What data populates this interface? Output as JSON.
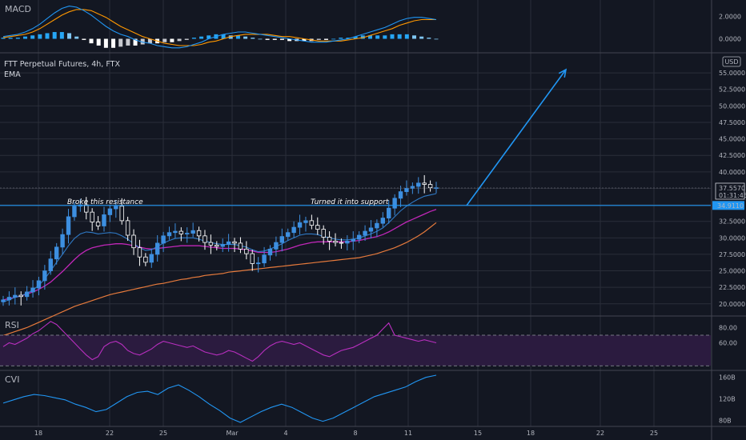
{
  "chart_data": {
    "type": "candlestick",
    "title": "FTT Perpetual Futures, 4h, FTX",
    "indicator_label": "EMA",
    "currency": "USD",
    "price_axis": {
      "ticks": [
        "55.0000",
        "52.5000",
        "50.0000",
        "47.5000",
        "45.0000",
        "42.5000",
        "40.0000",
        "37.5000",
        "35.0000",
        "32.5000",
        "30.0000",
        "27.5000",
        "25.0000",
        "22.5000",
        "20.0000"
      ],
      "values": [
        55,
        52.5,
        50,
        47.5,
        45,
        42.5,
        40,
        37.5,
        35,
        32.5,
        30,
        27.5,
        25,
        22.5,
        20
      ],
      "range": [
        18.4,
        57.8
      ]
    },
    "last_price": "37.5570",
    "countdown": "01:31:45",
    "resistance_level": "34.9110",
    "resistance_value": 34.911,
    "annotations": {
      "left": "Broke this resistance",
      "right": "Turned it into support"
    },
    "x_axis": {
      "labels": [
        "18",
        "22",
        "25",
        "Mar",
        "4",
        "8",
        "11",
        "15",
        "18",
        "22",
        "25"
      ],
      "domain": [
        0,
        932
      ]
    },
    "price_close": [
      20.6,
      21.0,
      21.3,
      21.1,
      21.8,
      22.4,
      23.5,
      25.0,
      26.8,
      28.6,
      30.5,
      33.2,
      34.8,
      35.0,
      33.9,
      32.4,
      31.8,
      33.5,
      34.4,
      34.8,
      32.6,
      30.4,
      28.5,
      27.1,
      26.3,
      27.5,
      29.2,
      30.3,
      30.8,
      31.0,
      30.6,
      30.7,
      31.1,
      30.3,
      29.3,
      28.9,
      28.7,
      29.0,
      29.4,
      29.2,
      28.3,
      27.6,
      26.1,
      26.2,
      27.4,
      28.3,
      29.3,
      30.2,
      30.8,
      31.6,
      32.3,
      32.6,
      31.9,
      31.3,
      30.1,
      29.5,
      29.3,
      29.2,
      29.5,
      29.8,
      30.4,
      31.0,
      31.5,
      32.2,
      33.0,
      34.5,
      36.0,
      37.0,
      37.5,
      37.8,
      38.3,
      38.1,
      37.6,
      37.6
    ],
    "ema_fast": [
      20.3,
      20.6,
      21.0,
      21.2,
      21.6,
      22.1,
      22.8,
      23.8,
      25.0,
      26.3,
      27.5,
      28.8,
      29.9,
      30.6,
      30.9,
      30.8,
      30.6,
      30.7,
      30.8,
      30.7,
      30.3,
      29.8,
      29.1,
      28.5,
      28.1,
      28.2,
      28.7,
      29.2,
      29.6,
      29.9,
      30.0,
      30.0,
      30.0,
      29.8,
      29.5,
      29.3,
      29.1,
      29.0,
      29.0,
      29.0,
      28.8,
      28.6,
      28.2,
      27.9,
      28.0,
      28.3,
      28.7,
      29.1,
      29.6,
      30.0,
      30.4,
      30.6,
      30.6,
      30.5,
      30.2,
      30.0,
      29.8,
      29.7,
      29.7,
      29.8,
      30.0,
      30.3,
      30.6,
      31.0,
      31.5,
      32.3,
      33.2,
      34.1,
      34.8,
      35.4,
      35.9,
      36.3,
      36.5,
      36.7
    ],
    "ema_mid": [
      20.6,
      20.8,
      21.0,
      21.2,
      21.5,
      21.8,
      22.2,
      22.7,
      23.3,
      24.1,
      24.9,
      25.8,
      26.7,
      27.5,
      28.1,
      28.5,
      28.7,
      28.9,
      29.0,
      29.1,
      29.1,
      29.0,
      28.8,
      28.6,
      28.4,
      28.3,
      28.4,
      28.5,
      28.6,
      28.7,
      28.8,
      28.8,
      28.8,
      28.8,
      28.7,
      28.6,
      28.5,
      28.4,
      28.4,
      28.4,
      28.3,
      28.2,
      28.0,
      27.8,
      27.8,
      27.8,
      27.9,
      28.1,
      28.3,
      28.6,
      28.9,
      29.1,
      29.3,
      29.4,
      29.4,
      29.4,
      29.4,
      29.4,
      29.4,
      29.5,
      29.6,
      29.8,
      30.0,
      30.2,
      30.5,
      30.9,
      31.4,
      31.9,
      32.4,
      32.8,
      33.2,
      33.6,
      34.0,
      34.3
    ],
    "ema_slow": [
      15.2,
      15.5,
      15.8,
      16.1,
      16.4,
      16.8,
      17.2,
      17.6,
      18.0,
      18.4,
      18.8,
      19.2,
      19.6,
      19.9,
      20.2,
      20.5,
      20.8,
      21.1,
      21.4,
      21.6,
      21.8,
      22.0,
      22.2,
      22.4,
      22.6,
      22.8,
      23.0,
      23.1,
      23.3,
      23.5,
      23.7,
      23.8,
      24.0,
      24.1,
      24.3,
      24.4,
      24.5,
      24.6,
      24.8,
      24.9,
      25.0,
      25.1,
      25.2,
      25.3,
      25.4,
      25.5,
      25.6,
      25.7,
      25.8,
      25.9,
      26.0,
      26.1,
      26.2,
      26.3,
      26.4,
      26.5,
      26.6,
      26.7,
      26.8,
      26.9,
      27.0,
      27.2,
      27.4,
      27.6,
      27.9,
      28.2,
      28.5,
      28.9,
      29.3,
      29.8,
      30.3,
      30.9,
      31.6,
      32.3
    ],
    "macd": {
      "label": "MACD",
      "ticks": [
        "2.0000",
        "0.0000"
      ],
      "tick_values": [
        2,
        0
      ],
      "range": [
        -1.1,
        3.3
      ],
      "macd_line": [
        0.2,
        0.3,
        0.4,
        0.6,
        0.9,
        1.3,
        1.8,
        2.3,
        2.7,
        2.9,
        2.8,
        2.5,
        2.1,
        1.6,
        1.1,
        0.7,
        0.4,
        0.2,
        -0.1,
        -0.3,
        -0.4,
        -0.6,
        -0.7,
        -0.8,
        -0.8,
        -0.7,
        -0.5,
        -0.3,
        0.0,
        0.2,
        0.4,
        0.5,
        0.6,
        0.6,
        0.5,
        0.4,
        0.3,
        0.2,
        0.1,
        0.0,
        -0.1,
        -0.2,
        -0.3,
        -0.3,
        -0.3,
        -0.2,
        -0.1,
        0.0,
        0.2,
        0.4,
        0.6,
        0.8,
        1.0,
        1.3,
        1.6,
        1.8,
        1.9,
        1.9,
        1.8,
        1.7
      ],
      "signal_line": [
        0.1,
        0.2,
        0.3,
        0.4,
        0.6,
        0.9,
        1.3,
        1.7,
        2.1,
        2.4,
        2.6,
        2.6,
        2.5,
        2.2,
        1.9,
        1.5,
        1.1,
        0.8,
        0.5,
        0.2,
        0.0,
        -0.2,
        -0.4,
        -0.5,
        -0.6,
        -0.6,
        -0.6,
        -0.5,
        -0.3,
        -0.2,
        0.0,
        0.2,
        0.3,
        0.4,
        0.4,
        0.4,
        0.4,
        0.3,
        0.2,
        0.2,
        0.1,
        0.0,
        -0.1,
        -0.2,
        -0.2,
        -0.2,
        -0.2,
        -0.1,
        0.0,
        0.1,
        0.3,
        0.5,
        0.7,
        0.9,
        1.2,
        1.4,
        1.6,
        1.7,
        1.7,
        1.7
      ],
      "histogram": [
        0.1,
        0.1,
        0.1,
        0.2,
        0.3,
        0.4,
        0.5,
        0.6,
        0.6,
        0.5,
        0.2,
        -0.1,
        -0.4,
        -0.6,
        -0.8,
        -0.8,
        -0.7,
        -0.6,
        -0.6,
        -0.5,
        -0.4,
        -0.4,
        -0.3,
        -0.3,
        -0.2,
        -0.1,
        0.1,
        0.2,
        0.3,
        0.4,
        0.4,
        0.3,
        0.3,
        0.2,
        0.1,
        0.0,
        -0.1,
        -0.1,
        -0.1,
        -0.2,
        -0.2,
        -0.2,
        -0.2,
        -0.1,
        -0.1,
        0.0,
        0.1,
        0.1,
        0.2,
        0.3,
        0.3,
        0.3,
        0.3,
        0.4,
        0.4,
        0.4,
        0.3,
        0.2,
        0.1,
        0.0
      ]
    },
    "rsi": {
      "label": "RSI",
      "ticks": [
        "80.00",
        "60.00"
      ],
      "tick_values": [
        80,
        60
      ],
      "range": [
        25,
        93
      ],
      "band": [
        30,
        70
      ],
      "values": [
        55,
        60,
        58,
        62,
        66,
        72,
        76,
        82,
        88,
        84,
        76,
        68,
        60,
        52,
        44,
        38,
        42,
        55,
        60,
        62,
        58,
        50,
        46,
        44,
        48,
        52,
        58,
        62,
        60,
        58,
        56,
        54,
        56,
        52,
        48,
        46,
        44,
        46,
        50,
        48,
        44,
        40,
        36,
        42,
        50,
        56,
        60,
        62,
        60,
        58,
        60,
        56,
        52,
        48,
        44,
        42,
        46,
        50,
        52,
        54,
        58,
        62,
        66,
        70,
        78,
        86,
        70,
        68,
        66,
        64,
        62,
        64,
        62,
        60
      ]
    },
    "cvi": {
      "label": "CVI",
      "ticks": [
        "160B",
        "120B",
        "80B"
      ],
      "tick_values": [
        160,
        120,
        80
      ],
      "range": [
        70,
        170
      ],
      "values": [
        112,
        118,
        124,
        128,
        126,
        122,
        118,
        110,
        104,
        96,
        100,
        112,
        124,
        132,
        134,
        128,
        140,
        146,
        136,
        124,
        110,
        98,
        84,
        76,
        86,
        96,
        104,
        110,
        104,
        94,
        84,
        78,
        84,
        94,
        104,
        114,
        124,
        130,
        136,
        142,
        152,
        160,
        164
      ]
    },
    "colors": {
      "background": "#131722",
      "grid": "#2a2e39",
      "up_candle": "#3d8fe0",
      "down_candle": "#ffffff",
      "ema_fast": "#2f7ac6",
      "ema_mid": "#c027b8",
      "ema_slow": "#e67a3c",
      "macd_line": "#2196f3",
      "signal_line": "#ff9800",
      "rsi_line": "#b82fbf",
      "rsi_band": "#2b1b3f",
      "cvi_line": "#2196f3",
      "support_line": "#2196f3",
      "arrow": "#2196f3",
      "price_badge": "#2196f3"
    }
  }
}
